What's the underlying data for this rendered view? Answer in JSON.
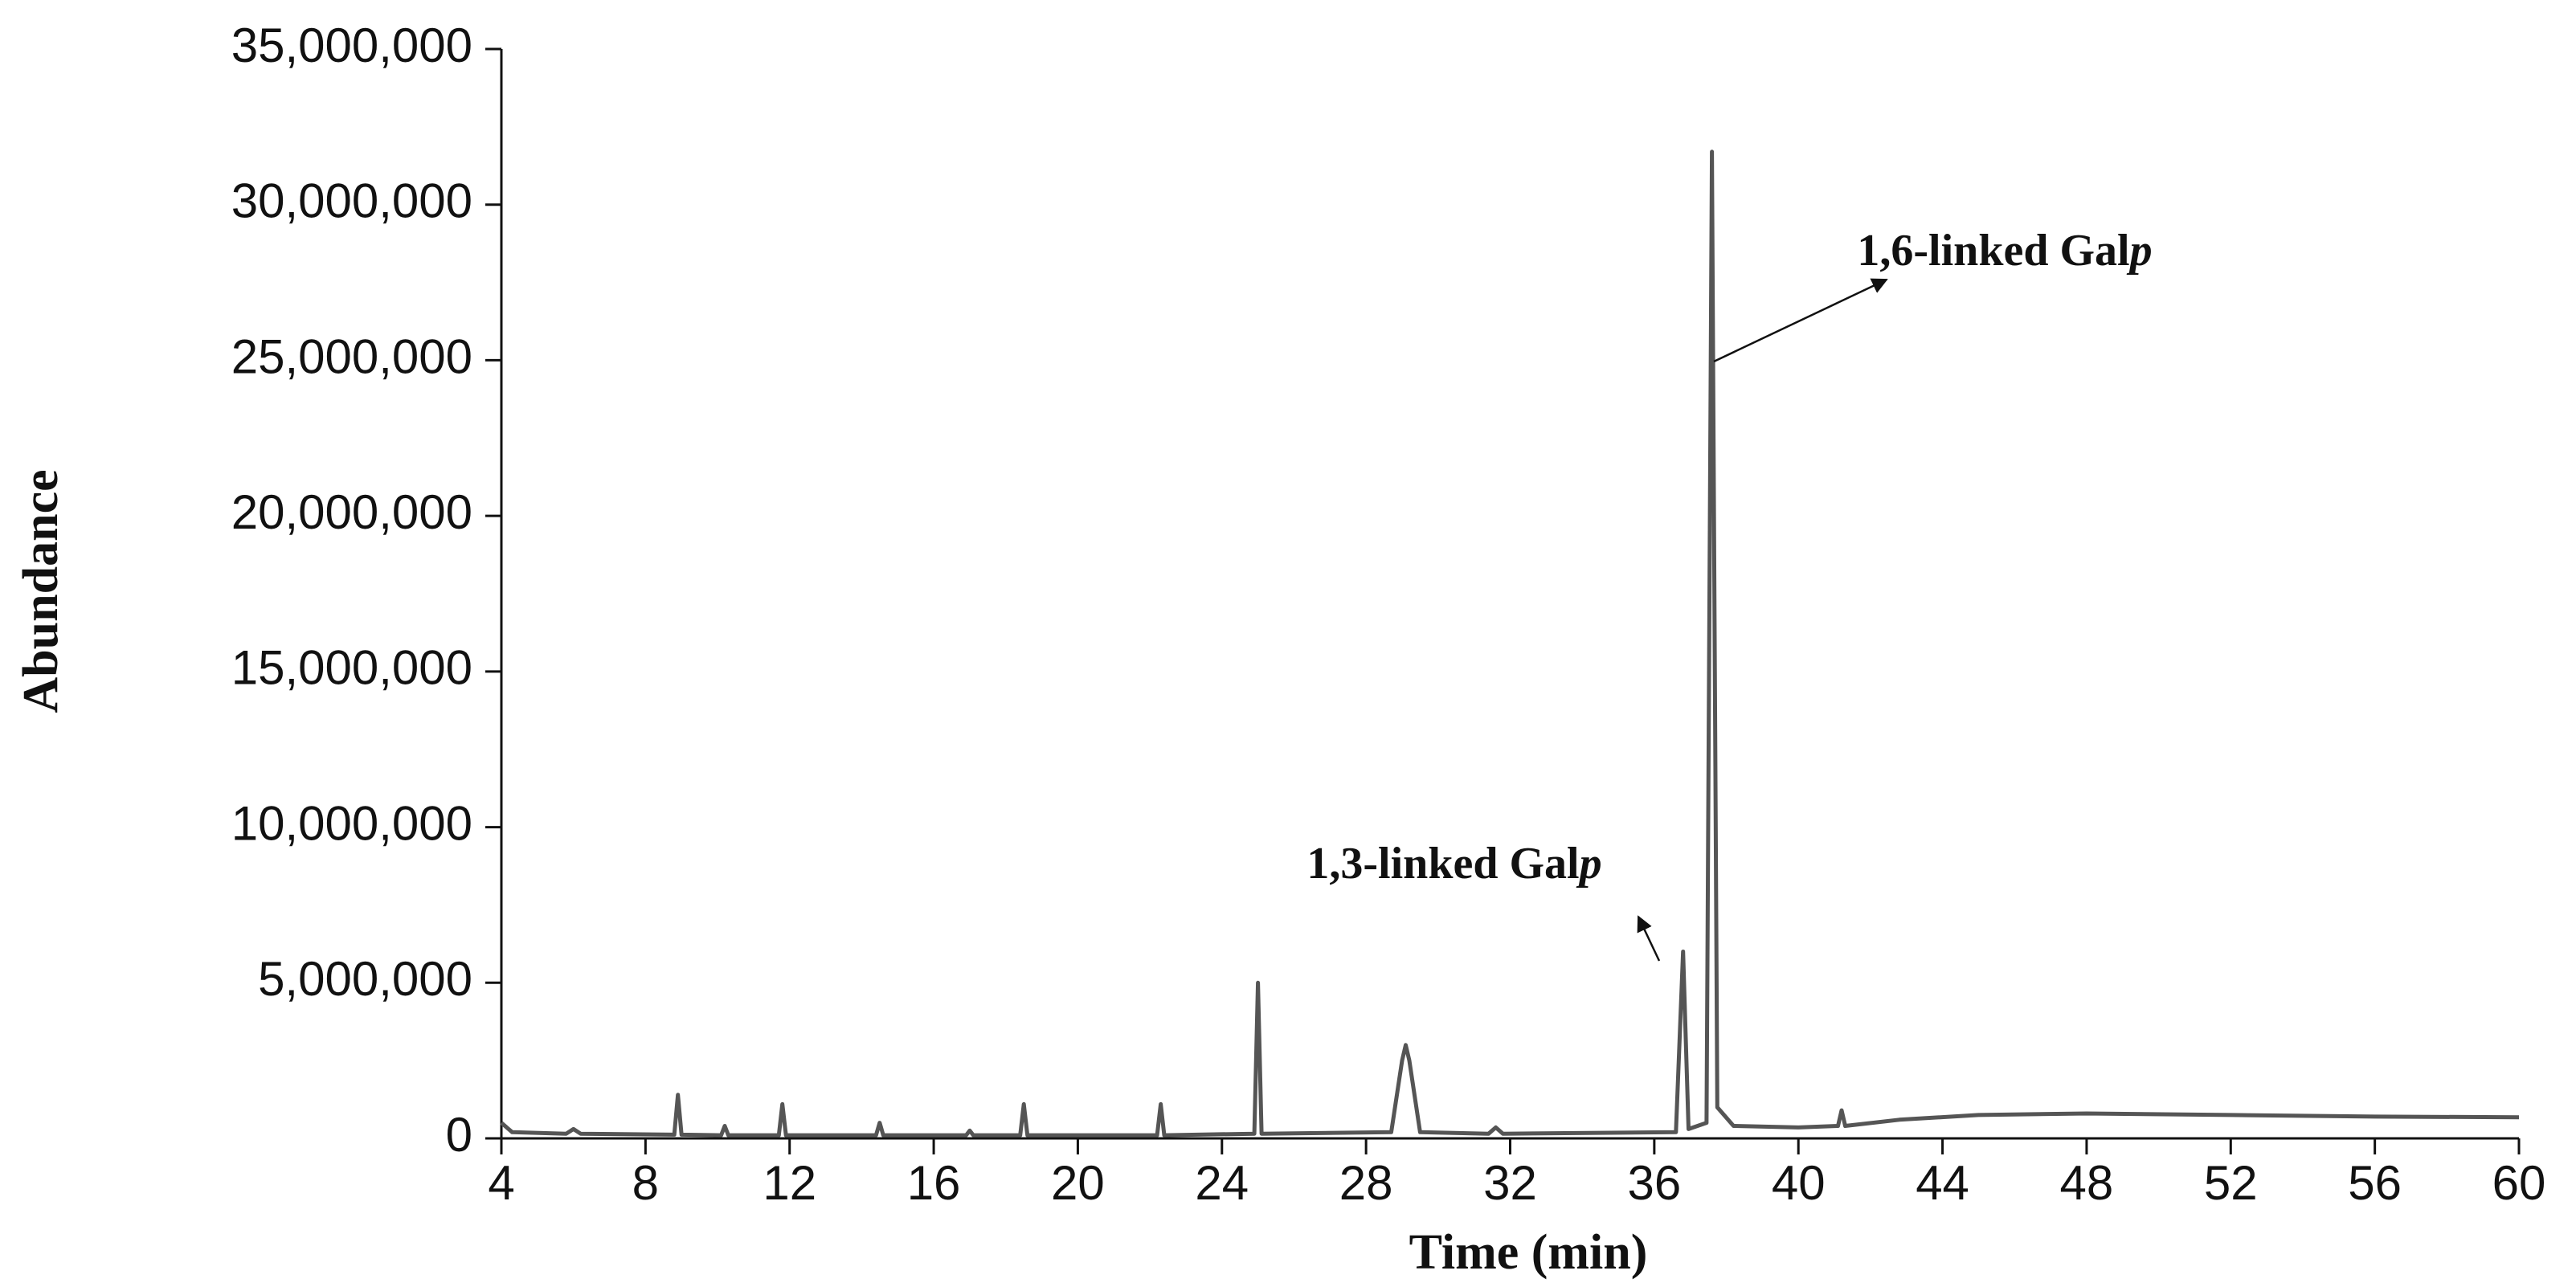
{
  "chart_data": {
    "type": "line",
    "x_label": "Time (min)",
    "y_label": "Abundance",
    "x": [
      4,
      4.3,
      5.8,
      6.0,
      6.2,
      8.8,
      8.9,
      9.0,
      10.1,
      10.2,
      10.3,
      11.7,
      11.8,
      11.9,
      14.4,
      14.5,
      14.6,
      16.9,
      17.0,
      17.1,
      18.4,
      18.5,
      18.6,
      22.2,
      22.3,
      22.4,
      24.9,
      25.0,
      25.1,
      28.7,
      29.0,
      29.1,
      29.2,
      29.5,
      31.4,
      31.6,
      31.8,
      36.6,
      36.8,
      36.95,
      37.45,
      37.6,
      37.75,
      38.2,
      40.0,
      41.1,
      41.2,
      41.3,
      42.8,
      45,
      48,
      52,
      56,
      60
    ],
    "series": [
      {
        "color": "#555555",
        "values": [
          500000,
          200000,
          150000,
          300000,
          150000,
          120000,
          1400000,
          120000,
          100000,
          400000,
          100000,
          100000,
          1100000,
          100000,
          100000,
          500000,
          100000,
          100000,
          250000,
          100000,
          100000,
          1100000,
          100000,
          100000,
          1100000,
          100000,
          150000,
          5000000,
          150000,
          200000,
          2500000,
          3000000,
          2500000,
          200000,
          150000,
          350000,
          150000,
          200000,
          6000000,
          300000,
          500000,
          31700000,
          1000000,
          400000,
          350000,
          400000,
          900000,
          400000,
          600000,
          750000,
          800000,
          750000,
          700000,
          680000
        ]
      }
    ],
    "xlim": [
      4,
      60
    ],
    "xticks": [
      4,
      8,
      12,
      16,
      20,
      24,
      28,
      32,
      36,
      40,
      44,
      48,
      52,
      56,
      60
    ],
    "ylim": [
      0,
      35000000
    ],
    "yticks": [
      0,
      {
        "value": 5000000,
        "label": "5,000,000"
      },
      {
        "value": 10000000,
        "label": "10,000,000"
      },
      {
        "value": 15000000,
        "label": "15,000,000"
      },
      {
        "value": 20000000,
        "label": "20,000,000"
      },
      {
        "value": 25000000,
        "label": "25,000,000"
      },
      {
        "value": 30000000,
        "label": "30,000,000"
      },
      {
        "value": 35000000,
        "label": "35,000,000"
      }
    ],
    "grid": false,
    "annotations": [
      {
        "text_parts": [
          "1,3-linked Gal",
          "p"
        ]
      },
      {
        "text_parts": [
          "1,6-linked Gal",
          "p"
        ]
      }
    ]
  }
}
